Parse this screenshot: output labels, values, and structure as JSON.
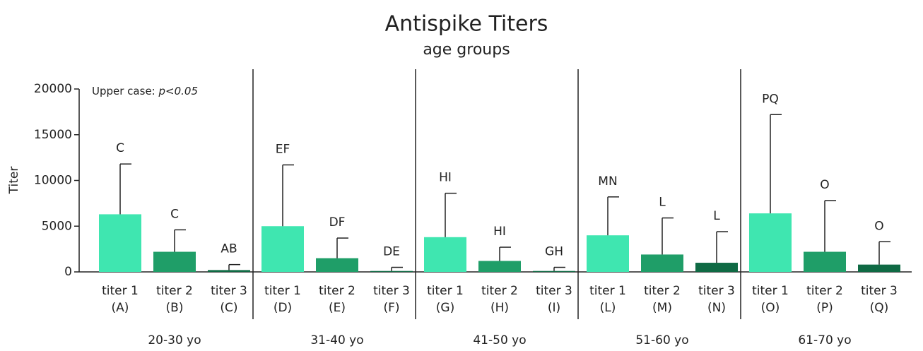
{
  "chart_data": {
    "type": "bar",
    "title": "Antispike Titers",
    "subtitle": "age groups",
    "y_label": "Titer",
    "note_prefix": "Upper case:",
    "note_italic": "p<0.05",
    "categories": [
      "20-30 yo",
      "31-40 yo",
      "41-50 yo",
      "51-60 yo",
      "61-70 yo"
    ],
    "series": [
      {
        "name": "titer 1",
        "color": "#3fe6b0",
        "values": [
          6300,
          5000,
          3800,
          4000,
          6400
        ],
        "errors": [
          5500,
          6700,
          4800,
          4200,
          10800
        ],
        "codes": [
          "(A)",
          "(D)",
          "(G)",
          "(L)",
          "(O)"
        ],
        "annotations": [
          "C",
          "EF",
          "HI",
          "MN",
          "PQ"
        ]
      },
      {
        "name": "titer 2",
        "color": "#1f9e68",
        "values": [
          2200,
          1500,
          1200,
          1900,
          2200
        ],
        "errors": [
          2400,
          2200,
          1500,
          4000,
          5600
        ],
        "codes": [
          "(B)",
          "(E)",
          "(H)",
          "(M)",
          "(P)"
        ],
        "annotations": [
          "C",
          "DF",
          "HI",
          "L",
          "O"
        ]
      },
      {
        "name": "titer 3",
        "color": "#0f6a44",
        "values": [
          200,
          100,
          100,
          1000,
          800
        ],
        "errors": [
          600,
          400,
          400,
          3400,
          2500
        ],
        "codes": [
          "(C)",
          "(F)",
          "(I)",
          "(N)",
          "(Q)"
        ],
        "annotations": [
          "AB",
          "DE",
          "GH",
          "L",
          "O"
        ]
      }
    ],
    "ylim": [
      0,
      20000
    ],
    "yticks": [
      0,
      5000,
      10000,
      15000,
      20000
    ]
  }
}
